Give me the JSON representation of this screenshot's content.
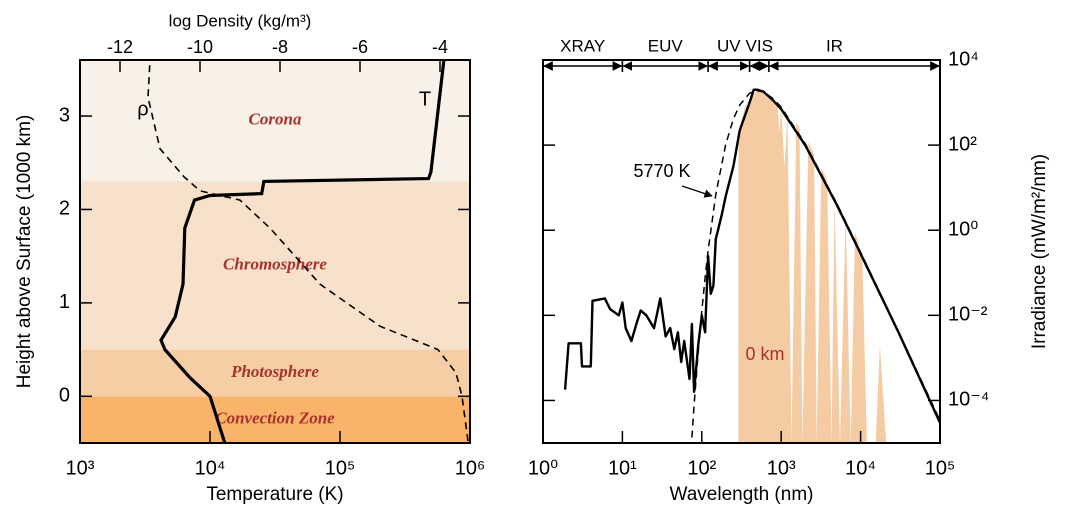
{
  "chart_data": [
    {
      "type": "line",
      "xlabel": "Temperature (K)",
      "x2label": "log Density (kg/m³)",
      "ylabel": "Height above Surface (1000 km)",
      "xscale": "log",
      "xlim": [
        1000,
        1000000
      ],
      "xticks": [
        {
          "value": 1000,
          "label": "10³"
        },
        {
          "value": 10000,
          "label": "10⁴"
        },
        {
          "value": 100000,
          "label": "10⁵"
        },
        {
          "value": 1000000,
          "label": "10⁶"
        }
      ],
      "x2lim": [
        -13,
        -3.25
      ],
      "x2ticks": [
        -12,
        -10,
        -8,
        -6,
        -4
      ],
      "ylim": [
        -0.5,
        3.6
      ],
      "yticks": [
        0,
        1,
        2,
        3
      ],
      "regions": [
        {
          "name": "Convection Zone",
          "from": -0.5,
          "to": 0,
          "color": "#f9b36b"
        },
        {
          "name": "Photosphere",
          "from": 0,
          "to": 0.5,
          "color": "#f6cea6"
        },
        {
          "name": "Chromosphere",
          "from": 0.5,
          "to": 2.3,
          "color": "#f7e1cb"
        },
        {
          "name": "Corona",
          "from": 2.3,
          "to": 3.6,
          "color": "#f9f1e8"
        }
      ],
      "series": [
        {
          "name": "T",
          "color": "#000000",
          "dash": false,
          "x": [
            13000,
            10000,
            7000,
            4500,
            4200,
            5400,
            6200,
            6400,
            7600,
            10000,
            25000,
            26000,
            480000,
            500000,
            630000
          ],
          "y": [
            -0.5,
            0,
            0.2,
            0.5,
            0.6,
            0.85,
            1.2,
            1.8,
            2.1,
            2.15,
            2.17,
            2.3,
            2.33,
            2.4,
            3.6
          ]
        },
        {
          "name": "ρ",
          "color": "#000000",
          "dash": true,
          "axis": "x2",
          "x": [
            -3.3,
            -3.45,
            -3.6,
            -4.05,
            -5.5,
            -7,
            -8.25,
            -9,
            -9.5,
            -10,
            -10.4,
            -11,
            -11.3,
            -11.25
          ],
          "y": [
            -0.48,
            0,
            0.25,
            0.5,
            0.75,
            1.2,
            1.8,
            2.1,
            2.15,
            2.2,
            2.35,
            2.65,
            3.2,
            3.6
          ]
        }
      ]
    },
    {
      "type": "line",
      "xlabel": "Wavelength (nm)",
      "y2label": "Irradiance (mW/m²/nm)",
      "xscale": "log",
      "yscale": "log",
      "xlim": [
        1,
        100000
      ],
      "xticks": [
        {
          "value": 1,
          "label": "10⁰"
        },
        {
          "value": 10,
          "label": "10¹"
        },
        {
          "value": 100,
          "label": "10²"
        },
        {
          "value": 1000,
          "label": "10³"
        },
        {
          "value": 10000,
          "label": "10⁴"
        },
        {
          "value": 100000,
          "label": "10⁵"
        }
      ],
      "y2lim": [
        1e-05,
        10000
      ],
      "y2ticks": [
        {
          "value": 0.0001,
          "label": "10⁻⁴"
        },
        {
          "value": 0.01,
          "label": "10⁻²"
        },
        {
          "value": 1,
          "label": "10⁰"
        },
        {
          "value": 100,
          "label": "10²"
        },
        {
          "value": 10000,
          "label": "10⁴"
        }
      ],
      "bands": [
        {
          "name": "XRAY",
          "from": 1,
          "to": 10
        },
        {
          "name": "EUV",
          "from": 10,
          "to": 120
        },
        {
          "name": "UV",
          "from": 120,
          "to": 400
        },
        {
          "name": "VIS",
          "from": 400,
          "to": 700
        },
        {
          "name": "IR",
          "from": 700,
          "to": 100000
        }
      ],
      "series": [
        {
          "name": "0 km",
          "kind": "area",
          "color": "#f5cba3",
          "axis": "y2",
          "x": [
            290,
            350,
            400,
            500,
            600,
            700,
            800,
            900,
            950,
            1000,
            1100,
            1200,
            1350,
            1550,
            1700,
            1850,
            2200,
            2600,
            2800,
            3200,
            3800,
            4300,
            4700,
            5500,
            6500,
            7500,
            8500,
            10500,
            12000,
            15500,
            17500,
            21000
          ],
          "values": [
            200,
            800,
            1200,
            1900,
            1700,
            1400,
            1100,
            900,
            200,
            780,
            30,
            550,
            1e-05,
            330,
            250,
            1e-05,
            120,
            60,
            1e-05,
            30,
            15,
            1e-05,
            5,
            1e-05,
            2.5,
            1e-05,
            0.9,
            0.25,
            1e-05,
            1e-05,
            0.002,
            1e-05
          ]
        },
        {
          "color": "#000000",
          "dash": false,
          "axis": "y2",
          "x": [
            1.9,
            2.1,
            3.0,
            3.1,
            4.0,
            4.2,
            6,
            7,
            9,
            10,
            11,
            13,
            15,
            17,
            20,
            25,
            30,
            35,
            40,
            45,
            50,
            55,
            60,
            70,
            75,
            80,
            90,
            100,
            110,
            120,
            130,
            140,
            150,
            160,
            180,
            200,
            250,
            300,
            400,
            450,
            500,
            600,
            800,
            1000,
            2000,
            5000,
            10000,
            30000,
            100000
          ],
          "values": [
            0.00018,
            0.0022,
            0.0022,
            0.00063,
            0.00063,
            0.022,
            0.025,
            0.014,
            0.01,
            0.02,
            0.005,
            0.0025,
            0.0063,
            0.013,
            0.01,
            0.005,
            0.025,
            0.0032,
            0.005,
            0.0016,
            0.004,
            0.0008,
            0.0025,
            0.00032,
            0.0063,
            0.00016,
            0.002,
            0.01,
            0.004,
            0.25,
            0.032,
            0.05,
            0.63,
            1,
            2.5,
            6.3,
            32,
            220,
            1000,
            2000,
            2000,
            1800,
            1100,
            700,
            100,
            4,
            0.28,
            0.004,
            3e-05
          ]
        },
        {
          "name": "5770 K",
          "color": "#000000",
          "dash": true,
          "axis": "y2",
          "x": [
            75,
            80,
            90,
            100,
            110,
            120,
            150,
            200,
            250,
            300,
            400,
            500,
            600,
            800,
            1000,
            2000,
            5000,
            10000,
            30000,
            100000
          ],
          "values": [
            1.35e-05,
            7.8e-05,
            0.00137,
            0.0127,
            0.077,
            0.33,
            6.9,
            104,
            414,
            873,
            1657,
            1900,
            1770,
            1221,
            778,
            109,
            4.27,
            0.305,
            0.0041,
            3.4e-05
          ]
        }
      ]
    }
  ]
}
